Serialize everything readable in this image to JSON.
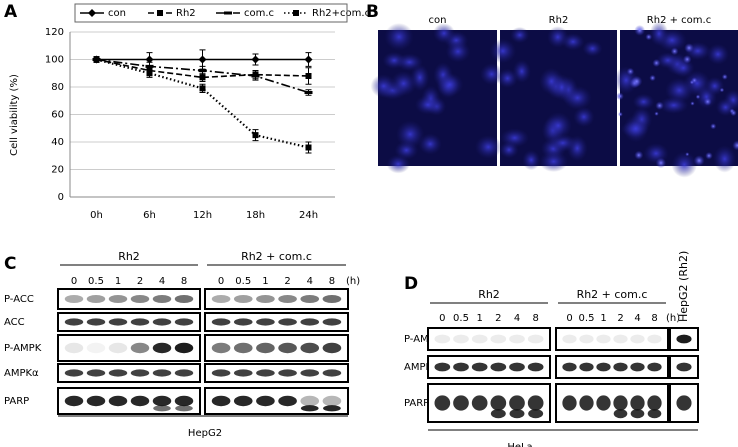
{
  "chart_data": {
    "type": "line",
    "panel_label": "A",
    "ylabel": "Cell viability (%)",
    "categories": [
      "0h",
      "6h",
      "12h",
      "18h",
      "24h"
    ],
    "ylim": [
      0,
      120
    ],
    "yticks": [
      0,
      20,
      40,
      60,
      80,
      100,
      120
    ],
    "grid": true,
    "legend": "top",
    "series": [
      {
        "name": "con",
        "color": "#000000",
        "style": "solid",
        "marker": "diamond",
        "values": [
          100,
          100,
          100,
          100,
          100
        ],
        "errors": [
          2,
          5,
          7,
          4,
          5
        ]
      },
      {
        "name": "Rh2",
        "color": "#000000",
        "style": "dashed",
        "marker": "square",
        "values": [
          100,
          92,
          87,
          89,
          88
        ],
        "errors": [
          2,
          3,
          3,
          3,
          6
        ]
      },
      {
        "name": "com.c",
        "color": "#000000",
        "style": "dashdot",
        "marker": "dash",
        "values": [
          100,
          95,
          92,
          88,
          76
        ],
        "errors": [
          2,
          3,
          3,
          3,
          2
        ]
      },
      {
        "name": "Rh2+com.c",
        "color": "#000000",
        "style": "dotted",
        "marker": "square",
        "values": [
          100,
          90,
          79,
          45,
          36
        ],
        "errors": [
          2,
          3,
          3,
          4,
          4
        ]
      }
    ]
  },
  "panel_b": {
    "label": "B",
    "images": [
      "con",
      "Rh2",
      "Rh2 + com.c"
    ]
  },
  "panel_c": {
    "label": "C",
    "groups": [
      "Rh2",
      "Rh2 + com.c"
    ],
    "lanes": [
      "0",
      "0.5",
      "1",
      "2",
      "4",
      "8"
    ],
    "unit": "(h)",
    "rows": [
      "P-ACC",
      "ACC",
      "P-AMPK",
      "AMPKα",
      "PARP"
    ],
    "cell_line": "HepG2"
  },
  "panel_d": {
    "label": "D",
    "groups": [
      "Rh2",
      "Rh2 + com.c"
    ],
    "lanes": [
      "0",
      "0.5",
      "1",
      "2",
      "4",
      "8"
    ],
    "unit": "(h)",
    "control_lane": "HepG2 (Rh2)",
    "rows": [
      "P-AMPK",
      "AMPKα",
      "PARP"
    ],
    "cell_line": "HeLa"
  }
}
